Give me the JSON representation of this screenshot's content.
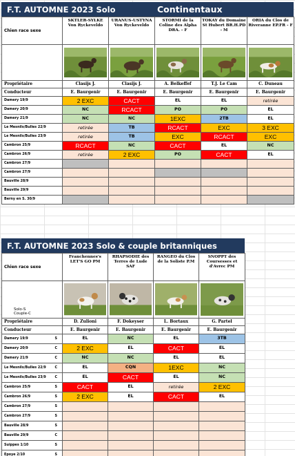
{
  "table1": {
    "title_left": "F.T. AUTOMNE 2023 Solo",
    "title_right": "Continentaux",
    "header_label": "Chien race sexe",
    "dogs": [
      {
        "name": "SKTLER-SYLKE Von Ryckeveldo"
      },
      {
        "name": "URANUS-USTYNA Von Ryckeveldo"
      },
      {
        "name": "STORMI de la Coline des Alpha DRA. - F"
      },
      {
        "name": "TOKAY du Domaine St Hubert BR.H.PD - M"
      },
      {
        "name": "ORIA du Clos de Riveranne EP.FR - F"
      }
    ],
    "owner_label": "Propriétaire",
    "owners": [
      "Clasijs J.",
      "Clasijs J.",
      "A. Belkeffef",
      "T.J. Le Cam",
      "C. Duneau"
    ],
    "conductor_label": "Conducteur",
    "conductors": [
      "E. Baurgenir",
      "E. Baurgenir",
      "E. Baurgenir",
      "E. Baurgenir",
      "E. Baurgenir"
    ],
    "rows": [
      {
        "label": "Damery 19/9",
        "cells": [
          {
            "v": "2 EXC",
            "c": "orange",
            "s": "big"
          },
          {
            "v": "CACT",
            "c": "red",
            "s": "big"
          },
          {
            "v": "EL",
            "c": "white"
          },
          {
            "v": "EL",
            "c": "white"
          },
          {
            "v": "retirée",
            "c": "pink",
            "s": "ital"
          }
        ]
      },
      {
        "label": "Damery 20/9",
        "cells": [
          {
            "v": "NC",
            "c": "green"
          },
          {
            "v": "RCACT",
            "c": "red",
            "s": "big"
          },
          {
            "v": "PO",
            "c": "green"
          },
          {
            "v": "PO",
            "c": "green"
          },
          {
            "v": "EL",
            "c": "white"
          }
        ]
      },
      {
        "label": "Damery 21/9",
        "cells": [
          {
            "v": "NC",
            "c": "green"
          },
          {
            "v": "NC",
            "c": "green"
          },
          {
            "v": "1EXC",
            "c": "orange",
            "s": "big"
          },
          {
            "v": "2TB",
            "c": "blue"
          },
          {
            "v": "EL",
            "c": "white"
          }
        ]
      },
      {
        "label": "Le Mesnils/Bulles 22/9",
        "cells": [
          {
            "v": "retirée",
            "c": "pink",
            "s": "ital"
          },
          {
            "v": "TB",
            "c": "blue"
          },
          {
            "v": "RCACT",
            "c": "red",
            "s": "big"
          },
          {
            "v": "EXC",
            "c": "orange",
            "s": "big"
          },
          {
            "v": "3 EXC",
            "c": "orange",
            "s": "big"
          }
        ]
      },
      {
        "label": "Le Mesnils/Bulles 23/9",
        "cells": [
          {
            "v": "retirée",
            "c": "pink",
            "s": "ital"
          },
          {
            "v": "TB",
            "c": "blue"
          },
          {
            "v": "EXC",
            "c": "orange",
            "s": "big"
          },
          {
            "v": "RCACT",
            "c": "red",
            "s": "big"
          },
          {
            "v": "EXC",
            "c": "orange",
            "s": "big"
          }
        ]
      },
      {
        "label": "Cambron 25/9",
        "cells": [
          {
            "v": "RCACT",
            "c": "red",
            "s": "big"
          },
          {
            "v": "NC",
            "c": "green"
          },
          {
            "v": "CACT",
            "c": "red",
            "s": "big"
          },
          {
            "v": "EL",
            "c": "white"
          },
          {
            "v": "NC",
            "c": "green"
          }
        ]
      },
      {
        "label": "Cambron 26/9",
        "cells": [
          {
            "v": "retirée",
            "c": "pink",
            "s": "ital"
          },
          {
            "v": "2 EXC",
            "c": "orange",
            "s": "big"
          },
          {
            "v": "PO",
            "c": "green"
          },
          {
            "v": "CACT",
            "c": "red",
            "s": "big"
          },
          {
            "v": "EL",
            "c": "white"
          }
        ]
      },
      {
        "label": "Cambron 27/9",
        "cells": [
          {
            "v": "",
            "c": "gray"
          },
          {
            "v": "",
            "c": "pink"
          },
          {
            "v": "",
            "c": "pink"
          },
          {
            "v": "",
            "c": "pink"
          },
          {
            "v": "",
            "c": "pink"
          }
        ]
      },
      {
        "label": "Cambron 27/9",
        "cells": [
          {
            "v": "",
            "c": "pink"
          },
          {
            "v": "",
            "c": "pink"
          },
          {
            "v": "",
            "c": "gray"
          },
          {
            "v": "",
            "c": "gray"
          },
          {
            "v": "",
            "c": "pink"
          }
        ]
      },
      {
        "label": "Bauville 28/9",
        "cells": [
          {
            "v": "",
            "c": "pink"
          },
          {
            "v": "",
            "c": "pink"
          },
          {
            "v": "",
            "c": "pink"
          },
          {
            "v": "",
            "c": "pink"
          },
          {
            "v": "",
            "c": "pink"
          }
        ]
      },
      {
        "label": "Bauville 29/9",
        "cells": [
          {
            "v": "",
            "c": "pink"
          },
          {
            "v": "",
            "c": "pink"
          },
          {
            "v": "",
            "c": "pink"
          },
          {
            "v": "",
            "c": "pink"
          },
          {
            "v": "",
            "c": "pink"
          }
        ]
      },
      {
        "label": "Berny en S. 30/9",
        "cells": [
          {
            "v": "",
            "c": "gray"
          },
          {
            "v": "",
            "c": "pink"
          },
          {
            "v": "",
            "c": "pink"
          },
          {
            "v": "",
            "c": "pink"
          },
          {
            "v": "",
            "c": "gray"
          }
        ]
      }
    ]
  },
  "table2": {
    "title": "F.T.  AUTOMNE 2023  Solo & couple britanniques",
    "header_label": "Chien race sexe",
    "solo_label": "Solo-S",
    "couple_label": "Couple-C",
    "dogs": [
      {
        "name": "Franchennes's LET'S GO PM"
      },
      {
        "name": "RHAPSODIE des Terres de Lude SAF"
      },
      {
        "name": "RANGEO du Clos de la Soliste P.M"
      },
      {
        "name": "SNOPPT des Coursesses et d'Avrec PM"
      }
    ],
    "owner_label": "Propriétaire",
    "owners": [
      "D. Zulioni",
      "F. Dokeyser",
      "L. Bortaux",
      "G. Partel"
    ],
    "conductor_label": "Conducteur",
    "conductors": [
      "E. Baurgenir",
      "E. Baurgenir",
      "E. Baurgenir",
      "E. Baurgenir"
    ],
    "rows": [
      {
        "label": "Damery 19/9",
        "sc": "S",
        "cells": [
          {
            "v": "EL",
            "c": "white"
          },
          {
            "v": "NC",
            "c": "green"
          },
          {
            "v": "EL",
            "c": "white"
          },
          {
            "v": "3TB",
            "c": "blue"
          }
        ]
      },
      {
        "label": "Damery 20/9",
        "sc": "C",
        "cells": [
          {
            "v": "2 EXC",
            "c": "orange",
            "s": "big"
          },
          {
            "v": "EL",
            "c": "white"
          },
          {
            "v": "CACT",
            "c": "red",
            "s": "big"
          },
          {
            "v": "EL",
            "c": "white"
          }
        ]
      },
      {
        "label": "Damery 21/9",
        "sc": "C",
        "cells": [
          {
            "v": "NC",
            "c": "green"
          },
          {
            "v": "NC",
            "c": "green"
          },
          {
            "v": "EL",
            "c": "white"
          },
          {
            "v": "EL",
            "c": "white"
          }
        ]
      },
      {
        "label": "Le Mesnils/Bulles 22/9",
        "sc": "C",
        "cells": [
          {
            "v": "EL",
            "c": "white"
          },
          {
            "v": "CQN",
            "c": "salmon"
          },
          {
            "v": "1EXC",
            "c": "orange",
            "s": "big"
          },
          {
            "v": "NC",
            "c": "green"
          }
        ]
      },
      {
        "label": "Le Mesnils/Bulles 23/9",
        "sc": "C",
        "cells": [
          {
            "v": "EL",
            "c": "white"
          },
          {
            "v": "CACT",
            "c": "red",
            "s": "big"
          },
          {
            "v": "EL",
            "c": "white"
          },
          {
            "v": "NC",
            "c": "green"
          }
        ]
      },
      {
        "label": "Cambron 25/9",
        "sc": "S",
        "cells": [
          {
            "v": "CACT",
            "c": "red",
            "s": "big"
          },
          {
            "v": "EL",
            "c": "white"
          },
          {
            "v": "retirée",
            "c": "pink",
            "s": "ital"
          },
          {
            "v": "2 EXC",
            "c": "orange",
            "s": "big"
          }
        ]
      },
      {
        "label": "Cambron 26/9",
        "sc": "S",
        "cells": [
          {
            "v": "2 EXC",
            "c": "orange",
            "s": "big"
          },
          {
            "v": "EL",
            "c": "white"
          },
          {
            "v": "CACT",
            "c": "red",
            "s": "big"
          },
          {
            "v": "EL",
            "c": "white"
          }
        ]
      },
      {
        "label": "Cambron 27/9",
        "sc": "S",
        "cells": [
          {
            "v": "",
            "c": "pink"
          },
          {
            "v": "",
            "c": "pink"
          },
          {
            "v": "",
            "c": "pink"
          },
          {
            "v": "",
            "c": "pink"
          }
        ]
      },
      {
        "label": "Cambron 27/9",
        "sc": "S",
        "cells": [
          {
            "v": "",
            "c": "pink"
          },
          {
            "v": "",
            "c": "pink"
          },
          {
            "v": "",
            "c": "pink"
          },
          {
            "v": "",
            "c": "pink"
          }
        ]
      },
      {
        "label": "Bauville 28/9",
        "sc": "S",
        "cells": [
          {
            "v": "",
            "c": "pink"
          },
          {
            "v": "",
            "c": "pink"
          },
          {
            "v": "",
            "c": "pink"
          },
          {
            "v": "",
            "c": "pink"
          }
        ]
      },
      {
        "label": "Bauville 29/9",
        "sc": "C",
        "cells": [
          {
            "v": "",
            "c": "pink"
          },
          {
            "v": "",
            "c": "pink"
          },
          {
            "v": "",
            "c": "pink"
          },
          {
            "v": "",
            "c": "pink"
          }
        ]
      },
      {
        "label": "Suippes 1/10",
        "sc": "S",
        "cells": [
          {
            "v": "",
            "c": "pink"
          },
          {
            "v": "",
            "c": "pink"
          },
          {
            "v": "",
            "c": "pink"
          },
          {
            "v": "",
            "c": "pink"
          }
        ]
      },
      {
        "label": "Epoye 2/10",
        "sc": "S",
        "cells": [
          {
            "v": "",
            "c": "pink"
          },
          {
            "v": "",
            "c": "pink"
          },
          {
            "v": "",
            "c": "pink"
          },
          {
            "v": "",
            "c": "pink"
          }
        ]
      }
    ]
  },
  "colors": {
    "title_bg": "#223a5e",
    "orange": "#ffc000",
    "red": "#ff0000",
    "green": "#c5e0b4",
    "blue": "#9dc3e6",
    "pink": "#fbe4d5",
    "salmon": "#f4b183",
    "gray": "#bfbfbf"
  }
}
